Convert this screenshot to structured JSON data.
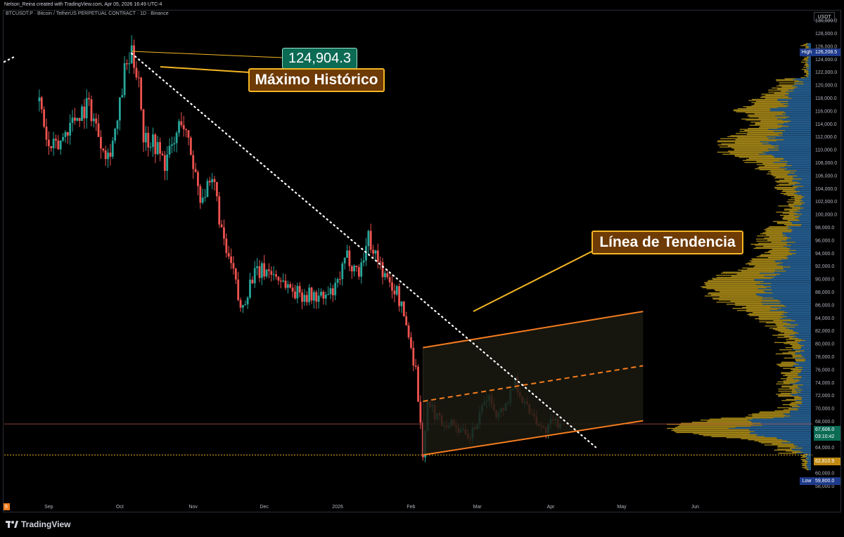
{
  "header": {
    "credit": "Nelson_Reina created with TradingView.com, Apr 05, 2026 16:49 UTC-4",
    "symbol_line": "BTCUSDT.P · Bitcoin / TetherUS PERPETUAL CONTRACT · 1D · Binance",
    "currency_button": "USDT"
  },
  "footer": {
    "brand": "TradingView"
  },
  "annotations": {
    "ath_price": "124,904.3",
    "ath_label": "Máximo Histórico",
    "trend_label": "Línea de Tendencia"
  },
  "price_labels": {
    "high_tag": "High",
    "high_value": "126,208.5",
    "last_value": "67,606.0",
    "countdown": "03:10:42",
    "level_value": "62,810.9",
    "low_tag": "Low",
    "low_value": "59,800.0"
  },
  "colors": {
    "background": "#000000",
    "up": "#26a69a",
    "down": "#ef5350",
    "channel": "#f57c1f",
    "callout_fill": "#6e3a05",
    "callout_border": "#f4b624",
    "price_tag": "#0b6b55",
    "volume_profile_yellow": "#b8961a",
    "volume_profile_blue": "#2a6aa3",
    "level_line": "#f4b624"
  },
  "chart_data": {
    "type": "candlestick",
    "title": "BTCUSDT.P · Bitcoin / TetherUS PERPETUAL CONTRACT · 1D · Binance",
    "ylim": [
      57000,
      131000
    ],
    "y_ticks": [
      "58,000.0",
      "60,000.0",
      "62,000.0",
      "64,000.0",
      "66,000.0",
      "68,000.0",
      "70,000.0",
      "72,000.0",
      "74,000.0",
      "76,000.0",
      "78,000.0",
      "80,000.0",
      "82,000.0",
      "84,000.0",
      "86,000.0",
      "88,000.0",
      "90,000.0",
      "92,000.0",
      "94,000.0",
      "96,000.0",
      "98,000.0",
      "100,000.0",
      "102,000.0",
      "104,000.0",
      "106,000.0",
      "108,000.0",
      "110,000.0",
      "112,000.0",
      "114,000.0",
      "116,000.0",
      "118,000.0",
      "120,000.0",
      "122,000.0",
      "124,000.0",
      "126,000.0",
      "128,000.0",
      "130,000.0"
    ],
    "x_ticks": [
      "Sep",
      "Oct",
      "Nov",
      "Dec",
      "2026",
      "Feb",
      "Mar",
      "Apr",
      "May",
      "Jun"
    ],
    "x_tick_left_fragment": "5",
    "close_path": [
      {
        "date": "2025-08-28",
        "price": 117500
      },
      {
        "date": "2025-09-01",
        "price": 110000
      },
      {
        "date": "2025-09-05",
        "price": 110500
      },
      {
        "date": "2025-09-09",
        "price": 113500
      },
      {
        "date": "2025-09-14",
        "price": 115800
      },
      {
        "date": "2025-09-18",
        "price": 117000
      },
      {
        "date": "2025-09-22",
        "price": 112500
      },
      {
        "date": "2025-09-26",
        "price": 109200
      },
      {
        "date": "2025-09-30",
        "price": 114000
      },
      {
        "date": "2025-10-03",
        "price": 122000
      },
      {
        "date": "2025-10-06",
        "price": 124500
      },
      {
        "date": "2025-10-09",
        "price": 121500
      },
      {
        "date": "2025-10-11",
        "price": 112000
      },
      {
        "date": "2025-10-15",
        "price": 111500
      },
      {
        "date": "2025-10-20",
        "price": 108000
      },
      {
        "date": "2025-10-24",
        "price": 111000
      },
      {
        "date": "2025-10-27",
        "price": 115000
      },
      {
        "date": "2025-10-31",
        "price": 109500
      },
      {
        "date": "2025-11-04",
        "price": 103000
      },
      {
        "date": "2025-11-10",
        "price": 104500
      },
      {
        "date": "2025-11-14",
        "price": 95000
      },
      {
        "date": "2025-11-18",
        "price": 91000
      },
      {
        "date": "2025-11-21",
        "price": 85000
      },
      {
        "date": "2025-11-26",
        "price": 90500
      },
      {
        "date": "2025-12-02",
        "price": 91500
      },
      {
        "date": "2025-12-08",
        "price": 90000
      },
      {
        "date": "2025-12-14",
        "price": 88000
      },
      {
        "date": "2025-12-20",
        "price": 87500
      },
      {
        "date": "2025-12-26",
        "price": 87000
      },
      {
        "date": "2025-12-31",
        "price": 88200
      },
      {
        "date": "2026-01-05",
        "price": 93500
      },
      {
        "date": "2026-01-10",
        "price": 91000
      },
      {
        "date": "2026-01-14",
        "price": 96500
      },
      {
        "date": "2026-01-18",
        "price": 93000
      },
      {
        "date": "2026-01-22",
        "price": 89500
      },
      {
        "date": "2026-01-26",
        "price": 88000
      },
      {
        "date": "2026-01-30",
        "price": 83000
      },
      {
        "date": "2026-02-03",
        "price": 76000
      },
      {
        "date": "2026-02-06",
        "price": 63000
      },
      {
        "date": "2026-02-08",
        "price": 70500
      },
      {
        "date": "2026-02-14",
        "price": 68000
      },
      {
        "date": "2026-02-20",
        "price": 67500
      },
      {
        "date": "2026-02-25",
        "price": 65000
      },
      {
        "date": "2026-03-02",
        "price": 68500
      },
      {
        "date": "2026-03-05",
        "price": 72000
      },
      {
        "date": "2026-03-10",
        "price": 69000
      },
      {
        "date": "2026-03-14",
        "price": 71500
      },
      {
        "date": "2026-03-17",
        "price": 74500
      },
      {
        "date": "2026-03-21",
        "price": 70500
      },
      {
        "date": "2026-03-25",
        "price": 69000
      },
      {
        "date": "2026-03-29",
        "price": 66500
      },
      {
        "date": "2026-04-02",
        "price": 67800
      },
      {
        "date": "2026-04-05",
        "price": 67606
      }
    ],
    "trend_line": {
      "from": {
        "date": "2025-10-06",
        "price": 124904.3
      },
      "to": {
        "date": "2026-04-20",
        "price": 64000
      }
    },
    "channel": {
      "upper": {
        "from": {
          "date": "2026-02-06",
          "price": 79400
        },
        "to": {
          "date": "2026-05-10",
          "price": 85000
        }
      },
      "middle": {
        "from": {
          "date": "2026-02-06",
          "price": 71100
        },
        "to": {
          "date": "2026-05-10",
          "price": 76600
        }
      },
      "lower": {
        "from": {
          "date": "2026-02-06",
          "price": 62810.9
        },
        "to": {
          "date": "2026-05-10",
          "price": 68100
        }
      }
    },
    "horizontal_levels": [
      {
        "price": 62810.9,
        "style": "dotted"
      },
      {
        "price": 67606.0,
        "style": "solid"
      }
    ],
    "high": 126208.5,
    "low": 59800.0,
    "last": 67606.0
  }
}
